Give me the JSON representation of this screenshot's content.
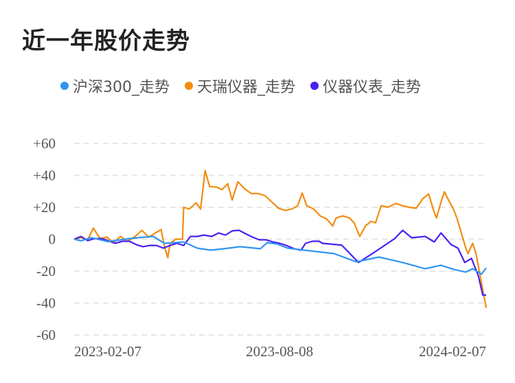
{
  "chart_data": {
    "type": "line",
    "title": "近一年股价走势",
    "xlabel": "",
    "ylabel": "",
    "x_unit": "days since 2023-02-07",
    "xlim": [
      0,
      365
    ],
    "ylim": [
      -60,
      60
    ],
    "yticks": [
      "+60",
      "+40",
      "+20",
      "0",
      "-20",
      "-40",
      "-60"
    ],
    "ytick_values": [
      60,
      40,
      20,
      0,
      -20,
      -40,
      -60
    ],
    "xticks": [
      "2023-02-07",
      "2023-08-08",
      "2024-02-07"
    ],
    "xtick_values": [
      0,
      182,
      365
    ],
    "grid": true,
    "legend_position": "top",
    "series": [
      {
        "name": "沪深300_走势",
        "color": "#2f95f0",
        "points": [
          [
            0,
            0
          ],
          [
            6,
            -1
          ],
          [
            15,
            1
          ],
          [
            30,
            -1.5
          ],
          [
            45,
            0
          ],
          [
            56,
            0.9
          ],
          [
            70,
            1.7
          ],
          [
            80,
            -2.6
          ],
          [
            97,
            -1.7
          ],
          [
            109,
            -5.6
          ],
          [
            121,
            -6.9
          ],
          [
            137,
            -5.6
          ],
          [
            147,
            -4.7
          ],
          [
            165,
            -6
          ],
          [
            171,
            -2.2
          ],
          [
            180,
            -3
          ],
          [
            189,
            -5.6
          ],
          [
            209,
            -7.3
          ],
          [
            230,
            -9
          ],
          [
            250,
            -14.2
          ],
          [
            270,
            -11.2
          ],
          [
            291,
            -14.6
          ],
          [
            311,
            -18.5
          ],
          [
            325,
            -16.3
          ],
          [
            336,
            -18.9
          ],
          [
            347,
            -20.6
          ],
          [
            353,
            -18.5
          ],
          [
            361,
            -21.9
          ],
          [
            365,
            -18
          ]
        ]
      },
      {
        "name": "天瑞仪器_走势",
        "color": "#f28c0f",
        "points": [
          [
            0,
            0
          ],
          [
            6,
            1
          ],
          [
            12,
            -0.4
          ],
          [
            17,
            7
          ],
          [
            23,
            0.4
          ],
          [
            29,
            1.3
          ],
          [
            35,
            -2.2
          ],
          [
            41,
            1.7
          ],
          [
            47,
            -1.3
          ],
          [
            54,
            1.7
          ],
          [
            60,
            5.6
          ],
          [
            66,
            1.3
          ],
          [
            72,
            3.9
          ],
          [
            77,
            6
          ],
          [
            80,
            -4.7
          ],
          [
            83,
            -11.6
          ],
          [
            85,
            -2.6
          ],
          [
            90,
            0
          ],
          [
            96,
            0
          ],
          [
            97,
            20
          ],
          [
            102,
            18.9
          ],
          [
            108,
            22.8
          ],
          [
            112,
            18.9
          ],
          [
            116,
            43
          ],
          [
            120,
            33
          ],
          [
            126,
            32.7
          ],
          [
            131,
            31
          ],
          [
            136,
            34.8
          ],
          [
            140,
            24.5
          ],
          [
            145,
            36
          ],
          [
            151,
            31.6
          ],
          [
            157,
            28.6
          ],
          [
            163,
            28.6
          ],
          [
            169,
            27.3
          ],
          [
            175,
            23.4
          ],
          [
            181,
            19.4
          ],
          [
            187,
            18
          ],
          [
            193,
            19
          ],
          [
            198,
            21
          ],
          [
            202,
            29
          ],
          [
            206,
            21
          ],
          [
            212,
            19
          ],
          [
            218,
            14.6
          ],
          [
            224,
            12.5
          ],
          [
            229,
            8.2
          ],
          [
            232,
            13.3
          ],
          [
            238,
            14.6
          ],
          [
            244,
            13.3
          ],
          [
            248,
            10.3
          ],
          [
            253,
            1.7
          ],
          [
            258,
            8.2
          ],
          [
            263,
            11.2
          ],
          [
            267,
            10.3
          ],
          [
            272,
            21
          ],
          [
            278,
            20
          ],
          [
            285,
            22.4
          ],
          [
            291,
            21
          ],
          [
            297,
            20
          ],
          [
            303,
            19.4
          ],
          [
            309,
            25.4
          ],
          [
            314,
            28.4
          ],
          [
            319,
            16.8
          ],
          [
            321,
            13.3
          ],
          [
            325,
            23.2
          ],
          [
            328,
            29.7
          ],
          [
            331,
            25.4
          ],
          [
            336,
            18.9
          ],
          [
            339,
            13.3
          ],
          [
            343,
            3.9
          ],
          [
            347,
            -5.6
          ],
          [
            349,
            -9
          ],
          [
            353,
            -2.6
          ],
          [
            356,
            -9
          ],
          [
            360,
            -24
          ],
          [
            365,
            -43
          ]
        ]
      },
      {
        "name": "仪器仪表_走势",
        "color": "#4a1ff0",
        "points": [
          [
            0,
            0
          ],
          [
            6,
            1.7
          ],
          [
            12,
            -0.9
          ],
          [
            18,
            0.4
          ],
          [
            24,
            0.4
          ],
          [
            30,
            -0.9
          ],
          [
            36,
            -2.6
          ],
          [
            43,
            -1.3
          ],
          [
            49,
            -1.3
          ],
          [
            55,
            -3.4
          ],
          [
            61,
            -4.7
          ],
          [
            67,
            -3.9
          ],
          [
            73,
            -3.9
          ],
          [
            79,
            -5.6
          ],
          [
            85,
            -3.9
          ],
          [
            91,
            -2.6
          ],
          [
            97,
            -3.9
          ],
          [
            103,
            1.7
          ],
          [
            109,
            1.7
          ],
          [
            115,
            2.6
          ],
          [
            122,
            1.7
          ],
          [
            128,
            3.9
          ],
          [
            134,
            2.6
          ],
          [
            140,
            5.2
          ],
          [
            146,
            5.6
          ],
          [
            152,
            3.4
          ],
          [
            158,
            1.3
          ],
          [
            164,
            -0.4
          ],
          [
            170,
            -0.4
          ],
          [
            176,
            -1.7
          ],
          [
            182,
            -2.6
          ],
          [
            188,
            -3.9
          ],
          [
            195,
            -6
          ],
          [
            201,
            -6.9
          ],
          [
            205,
            -2.6
          ],
          [
            211,
            -1.3
          ],
          [
            217,
            -1.3
          ],
          [
            220,
            -2.6
          ],
          [
            237,
            -3.7
          ],
          [
            252,
            -14.6
          ],
          [
            267,
            -7.7
          ],
          [
            284,
            0.4
          ],
          [
            291,
            5.6
          ],
          [
            299,
            0.9
          ],
          [
            311,
            1.7
          ],
          [
            319,
            -1.7
          ],
          [
            325,
            3.9
          ],
          [
            334,
            -3.4
          ],
          [
            340,
            -5.6
          ],
          [
            346,
            -14.6
          ],
          [
            352,
            -12
          ],
          [
            358,
            -22.8
          ],
          [
            362,
            -35
          ],
          [
            365,
            -35
          ]
        ]
      }
    ]
  }
}
